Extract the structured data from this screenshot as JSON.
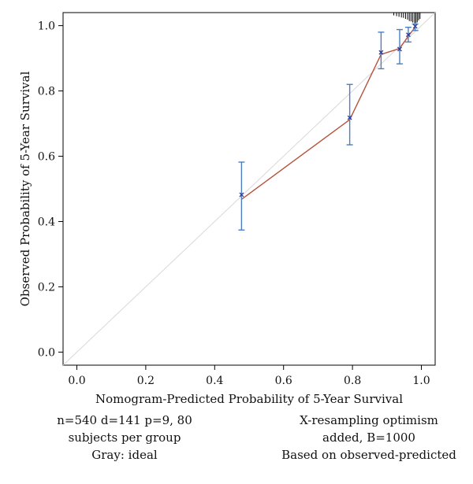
{
  "chart_data": {
    "type": "line",
    "title": "",
    "xlabel": "Nomogram-Predicted Probability of 5-Year Survival",
    "ylabel": "Observed Probability of 5-Year Survival",
    "xlim": [
      -0.04,
      1.04
    ],
    "ylim": [
      -0.04,
      1.04
    ],
    "x_ticks": [
      0.0,
      0.2,
      0.4,
      0.6,
      0.8,
      1.0
    ],
    "y_ticks": [
      0.0,
      0.2,
      0.4,
      0.6,
      0.8,
      1.0
    ],
    "x_tick_labels": [
      "0.0",
      "0.2",
      "0.4",
      "0.6",
      "0.8",
      "1.0"
    ],
    "y_tick_labels": [
      "0.0",
      "0.2",
      "0.4",
      "0.6",
      "0.8",
      "1.0"
    ],
    "ideal_line": {
      "x": [
        -0.04,
        1.04
      ],
      "y": [
        -0.04,
        1.04
      ],
      "color": "#d8d8d8"
    },
    "calibration": {
      "color": "#b5533c",
      "x": [
        0.478,
        0.792,
        0.883,
        0.937,
        0.962,
        0.982
      ],
      "y": [
        0.468,
        0.712,
        0.912,
        0.93,
        0.968,
        0.995
      ]
    },
    "observed_points": {
      "color": "#2e3a9e",
      "marker": "x",
      "x": [
        0.478,
        0.792,
        0.883,
        0.937,
        0.962,
        0.982
      ],
      "y": [
        0.482,
        0.718,
        0.918,
        0.928,
        0.972,
        0.998
      ]
    },
    "error_bars": {
      "color": "#4a7fc0",
      "x": [
        0.478,
        0.792,
        0.883,
        0.937,
        0.962,
        0.982
      ],
      "lower": [
        0.374,
        0.635,
        0.868,
        0.883,
        0.95,
        0.985
      ],
      "upper": [
        0.582,
        0.82,
        0.98,
        0.988,
        0.995,
        1.005
      ]
    },
    "rug": {
      "color": "#000000",
      "x": [
        0.92,
        0.928,
        0.935,
        0.942,
        0.948,
        0.954,
        0.96,
        0.965,
        0.97,
        0.975,
        0.98,
        0.984,
        0.988,
        0.992,
        0.996
      ],
      "len": [
        0.008,
        0.01,
        0.012,
        0.014,
        0.015,
        0.018,
        0.02,
        0.024,
        0.025,
        0.028,
        0.03,
        0.03,
        0.028,
        0.022,
        0.018
      ]
    },
    "grid": false,
    "legend": "none"
  },
  "notes": {
    "left_line1": "n=540 d=141 p=9, 80",
    "left_line2": "subjects per group",
    "left_line3": "Gray: ideal",
    "right_line1": "X-resampling optimism",
    "right_line2": "added, B=1000",
    "right_line3": "Based on observed-predicted"
  }
}
